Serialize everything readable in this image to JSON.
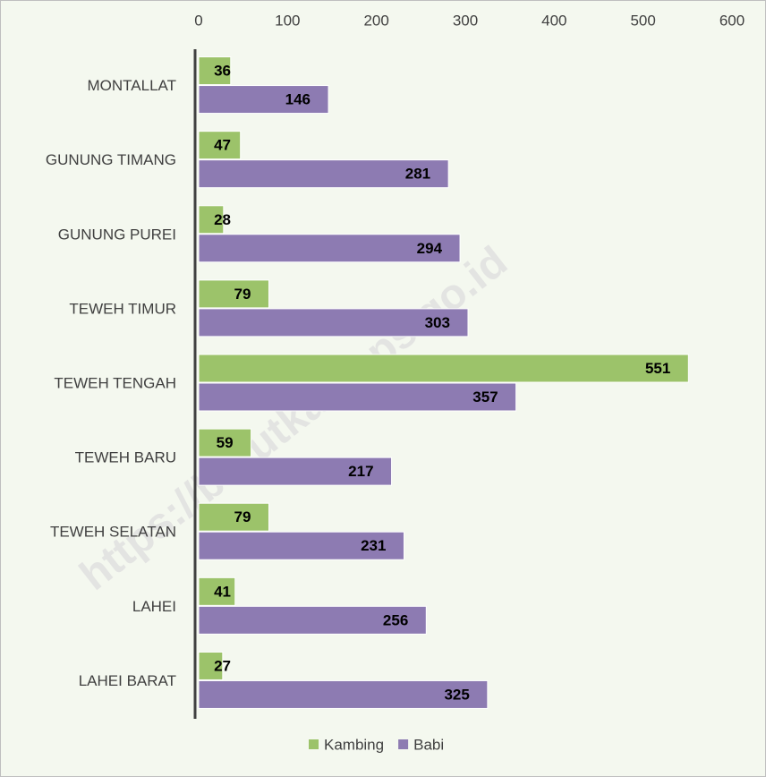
{
  "chart_data": {
    "type": "bar",
    "orientation": "horizontal",
    "categories": [
      "MONTALLAT",
      "GUNUNG TIMANG",
      "GUNUNG PUREI",
      "TEWEH TIMUR",
      "TEWEH TENGAH",
      "TEWEH BARU",
      "TEWEH SELATAN",
      "LAHEI",
      "LAHEI BARAT"
    ],
    "series": [
      {
        "name": "Kambing",
        "color": "#9cc36a",
        "values": [
          36,
          47,
          28,
          79,
          551,
          59,
          79,
          41,
          27
        ]
      },
      {
        "name": "Babi",
        "color": "#8d7bb2",
        "values": [
          146,
          281,
          294,
          303,
          357,
          217,
          231,
          256,
          325
        ]
      }
    ],
    "xlim": [
      0,
      600
    ],
    "xticks": [
      0,
      100,
      200,
      300,
      400,
      500,
      600
    ],
    "legend": "bottom",
    "watermark": "https://barutkab.bps.go.id"
  }
}
